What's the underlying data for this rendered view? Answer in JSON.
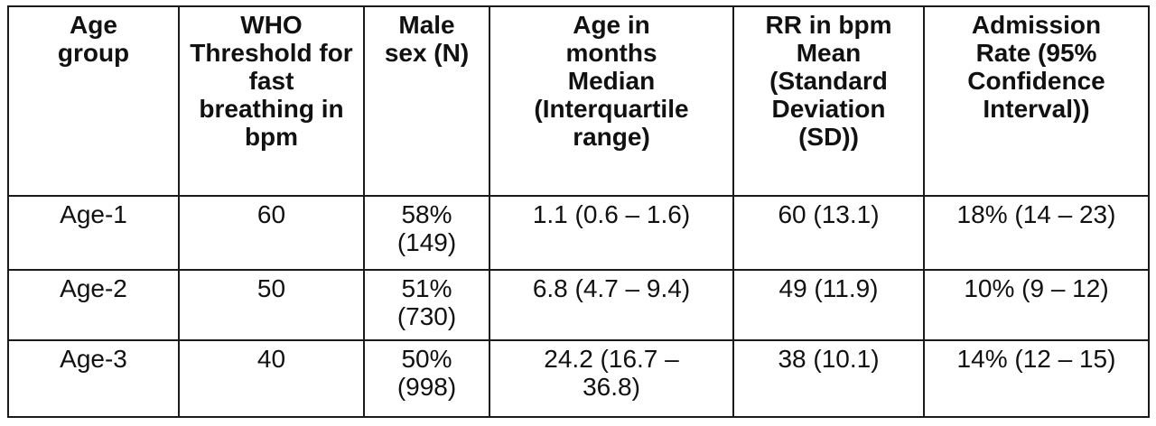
{
  "table": {
    "headers": [
      "Age\ngroup",
      "WHO\nThreshold for fast\nbreathing in bpm",
      "Male\nsex (N)",
      "Age in\nmonths\nMedian\n(Interquartile\nrange)",
      "RR in bpm\nMean\n(Standard\nDeviation\n(SD))",
      "Admission\nRate (95%\nConfidence\nInterval))"
    ],
    "rows": [
      [
        "Age-1",
        "60",
        "58%\n(149)",
        "1.1 (0.6 – 1.6)",
        "60 (13.1)",
        "18% (14 – 23)"
      ],
      [
        "Age-2",
        "50",
        "51%\n(730)",
        "6.8 (4.7 – 9.4)",
        "49 (11.9)",
        "10% (9 – 12)"
      ],
      [
        "Age-3",
        "40",
        "50%\n(998)",
        "24.2 (16.7 –\n36.8)",
        "38 (10.1)",
        "14% (12 – 15)"
      ]
    ]
  }
}
